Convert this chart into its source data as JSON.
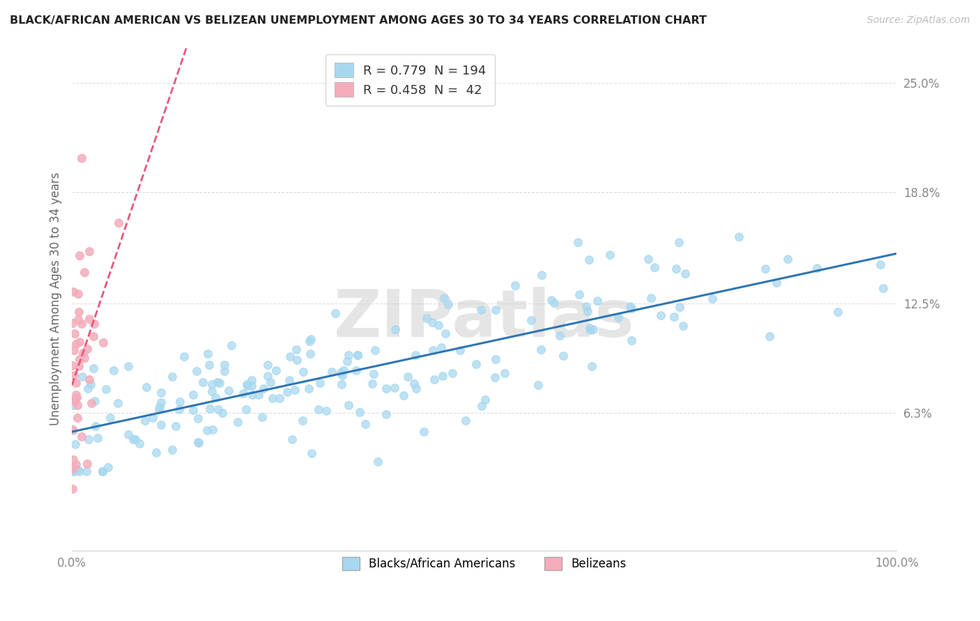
{
  "title": "BLACK/AFRICAN AMERICAN VS BELIZEAN UNEMPLOYMENT AMONG AGES 30 TO 34 YEARS CORRELATION CHART",
  "source": "Source: ZipAtlas.com",
  "ylabel": "Unemployment Among Ages 30 to 34 years",
  "xlim": [
    0,
    100
  ],
  "ylim": [
    -1.5,
    27
  ],
  "yticks": [
    6.3,
    12.5,
    18.8,
    25.0
  ],
  "ytick_labels": [
    "6.3%",
    "12.5%",
    "18.8%",
    "25.0%"
  ],
  "xtick_positions": [
    0,
    100
  ],
  "xtick_labels": [
    "0.0%",
    "100.0%"
  ],
  "legend_R1": "0.779",
  "legend_N1": "194",
  "legend_R2": "0.458",
  "legend_N2": " 42",
  "legend_label1": "Blacks/African Americans",
  "legend_label2": "Belizeans",
  "color_blue_scatter": "#A8D8F0",
  "color_blue_line": "#2E75B6",
  "color_pink_scatter": "#F4ACBB",
  "color_pink_line": "#E8567A",
  "watermark": "ZIPatlas",
  "background_color": "#FFFFFF",
  "R_blue": 0.779,
  "N_blue": 194,
  "R_pink": 0.458,
  "N_pink": 42
}
